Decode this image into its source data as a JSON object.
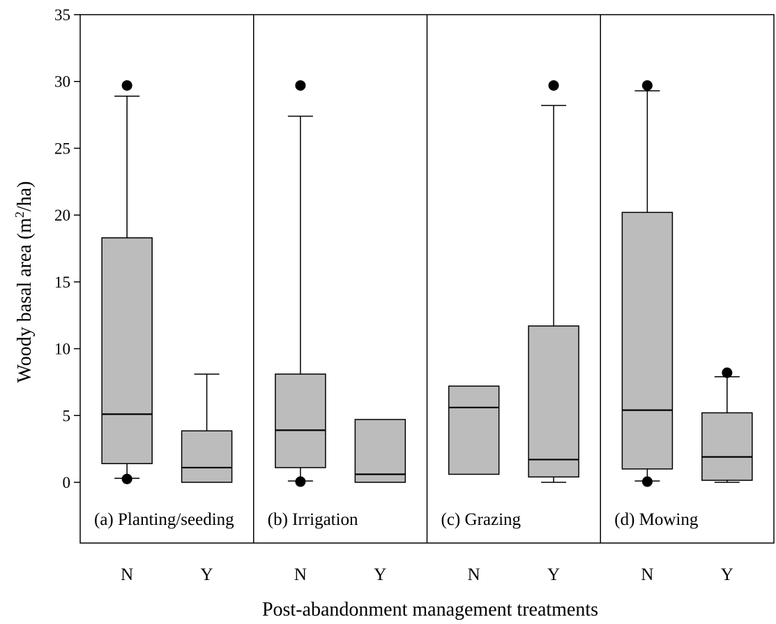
{
  "chart_data": {
    "type": "box",
    "title": "",
    "xlabel": "Post-abandonment management treatments",
    "ylabel_main": "Woody basal area (m",
    "ylabel_sup": "2",
    "ylabel_tail": "/ha)",
    "ylim": [
      -4.5,
      35
    ],
    "yticks": [
      0,
      5,
      10,
      15,
      20,
      25,
      30,
      35
    ],
    "panels": [
      {
        "label": "(a) Planting/seeding",
        "groups": [
          {
            "category": "N",
            "whisker_low": 0.3,
            "q1": 1.4,
            "median": 5.1,
            "q3": 18.3,
            "whisker_high": 28.9,
            "outliers": [
              0.25,
              29.7
            ]
          },
          {
            "category": "Y",
            "whisker_low": 0.0,
            "q1": 0.0,
            "median": 1.1,
            "q3": 3.85,
            "whisker_high": 8.1,
            "outliers": []
          }
        ]
      },
      {
        "label": "(b) Irrigation",
        "groups": [
          {
            "category": "N",
            "whisker_low": 0.1,
            "q1": 1.1,
            "median": 3.9,
            "q3": 8.1,
            "whisker_high": 27.4,
            "outliers": [
              0.05,
              29.7
            ]
          },
          {
            "category": "Y",
            "whisker_low": 0.0,
            "q1": 0.0,
            "median": 0.6,
            "q3": 4.7,
            "whisker_high": 4.7,
            "outliers": []
          }
        ]
      },
      {
        "label": "(c) Grazing",
        "groups": [
          {
            "category": "N",
            "whisker_low": 0.6,
            "q1": 0.6,
            "median": 5.6,
            "q3": 7.2,
            "whisker_high": 7.2,
            "outliers": []
          },
          {
            "category": "Y",
            "whisker_low": 0.0,
            "q1": 0.4,
            "median": 1.7,
            "q3": 11.7,
            "whisker_high": 28.2,
            "outliers": [
              29.7
            ]
          }
        ]
      },
      {
        "label": "(d) Mowing",
        "groups": [
          {
            "category": "N",
            "whisker_low": 0.1,
            "q1": 1.0,
            "median": 5.4,
            "q3": 20.2,
            "whisker_high": 29.3,
            "outliers": [
              0.05,
              29.7
            ]
          },
          {
            "category": "Y",
            "whisker_low": 0.0,
            "q1": 0.15,
            "median": 1.9,
            "q3": 5.2,
            "whisker_high": 7.9,
            "outliers": [
              8.2
            ]
          }
        ]
      }
    ],
    "colors": {
      "box_fill": "#bcbcbc",
      "stroke": "#000000"
    }
  }
}
